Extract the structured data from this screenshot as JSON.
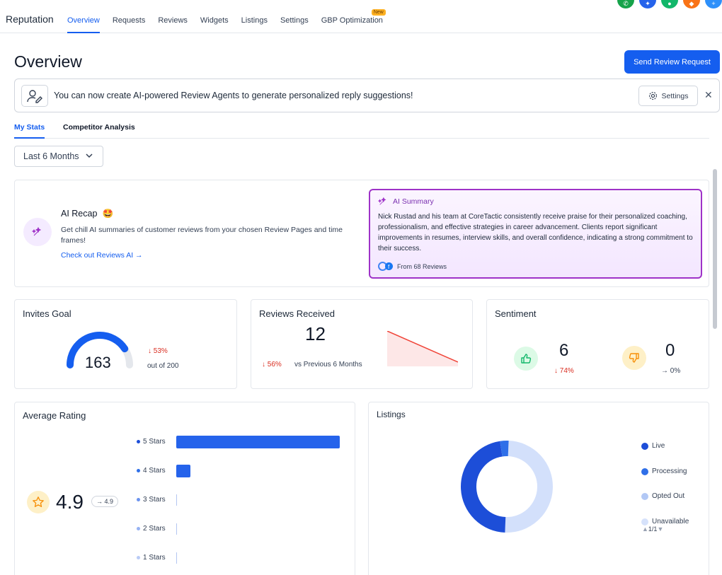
{
  "nav": {
    "brand": "Reputation",
    "tabs": [
      {
        "label": "Overview",
        "active": true
      },
      {
        "label": "Requests"
      },
      {
        "label": "Reviews"
      },
      {
        "label": "Widgets"
      },
      {
        "label": "Listings"
      },
      {
        "label": "Settings"
      },
      {
        "label": "GBP Optimization",
        "badge": "New"
      }
    ],
    "avatars": [
      {
        "color": "#16a34a",
        "icon": "phone-icon"
      },
      {
        "color": "#2563eb",
        "icon": "sparkle-icon"
      },
      {
        "color": "#12b76a",
        "icon": "chat-icon"
      },
      {
        "color": "#f97316",
        "icon": "megaphone-icon"
      },
      {
        "color": "#2e90fa",
        "icon": "plus-icon"
      }
    ]
  },
  "header": {
    "title": "Overview",
    "primary_button": "Send Review Request"
  },
  "banner": {
    "text": "You can now create AI-powered Review Agents to generate personalized reply suggestions!",
    "settings_label": "Settings",
    "close": "✕"
  },
  "subtabs": [
    {
      "label": "My Stats",
      "active": true
    },
    {
      "label": "Competitor Analysis"
    }
  ],
  "date_range": {
    "value": "Last 6 Months"
  },
  "ai_recap": {
    "title": "AI Recap",
    "emoji": "🤩",
    "description": "Get chill AI summaries of customer reviews from your chosen Review Pages and time frames!",
    "link": "Check out Reviews AI →",
    "summary_title": "AI Summary",
    "summary_text": "Nick Rustad and his team at CoreTactic consistently receive praise for their personalized coaching, professionalism, and effective strategies in career advancement. Clients report significant improvements in resumes, interview skills, and overall confidence, indicating a strong commitment to their success.",
    "summary_source": "From 68 Reviews"
  },
  "invites_goal": {
    "title": "Invites Goal",
    "value": "163",
    "change": "↓ 53%",
    "out_of": "out of 200",
    "progress": 0.815
  },
  "reviews_received": {
    "title": "Reviews Received",
    "value": "12",
    "change": "↓ 56%",
    "comparison": "vs Previous 6 Months"
  },
  "sentiment": {
    "title": "Sentiment",
    "positive_value": "6",
    "positive_change": "↓ 74%",
    "negative_value": "0",
    "negative_change": "→ 0%",
    "positive_color": "#12b76a",
    "negative_color": "#fdb022"
  },
  "average_rating": {
    "title": "Average Rating",
    "value": "4.9",
    "trend": "→ 4.9",
    "bars": [
      {
        "label": "5 Stars",
        "fraction": 0.94
      },
      {
        "label": "4 Stars",
        "fraction": 0.06
      },
      {
        "label": "3 Stars",
        "fraction": 0
      },
      {
        "label": "2 Stars",
        "fraction": 0
      },
      {
        "label": "1 Stars",
        "fraction": 0
      }
    ]
  },
  "listings": {
    "title": "Listings",
    "legend": [
      {
        "label": "Live",
        "color": "#1d4ed8"
      },
      {
        "label": "Processing",
        "color": "#2f6fe8"
      },
      {
        "label": "Opted Out",
        "color": "#b2c8f5"
      },
      {
        "label": "Unavailable",
        "color": "#d6e2fb"
      }
    ],
    "pager": "1/1",
    "donut": [
      {
        "label": "Live",
        "fraction": 0.47
      },
      {
        "label": "Processing",
        "fraction": 0.03
      },
      {
        "label": "Opted Out",
        "fraction": 0.5
      }
    ]
  }
}
